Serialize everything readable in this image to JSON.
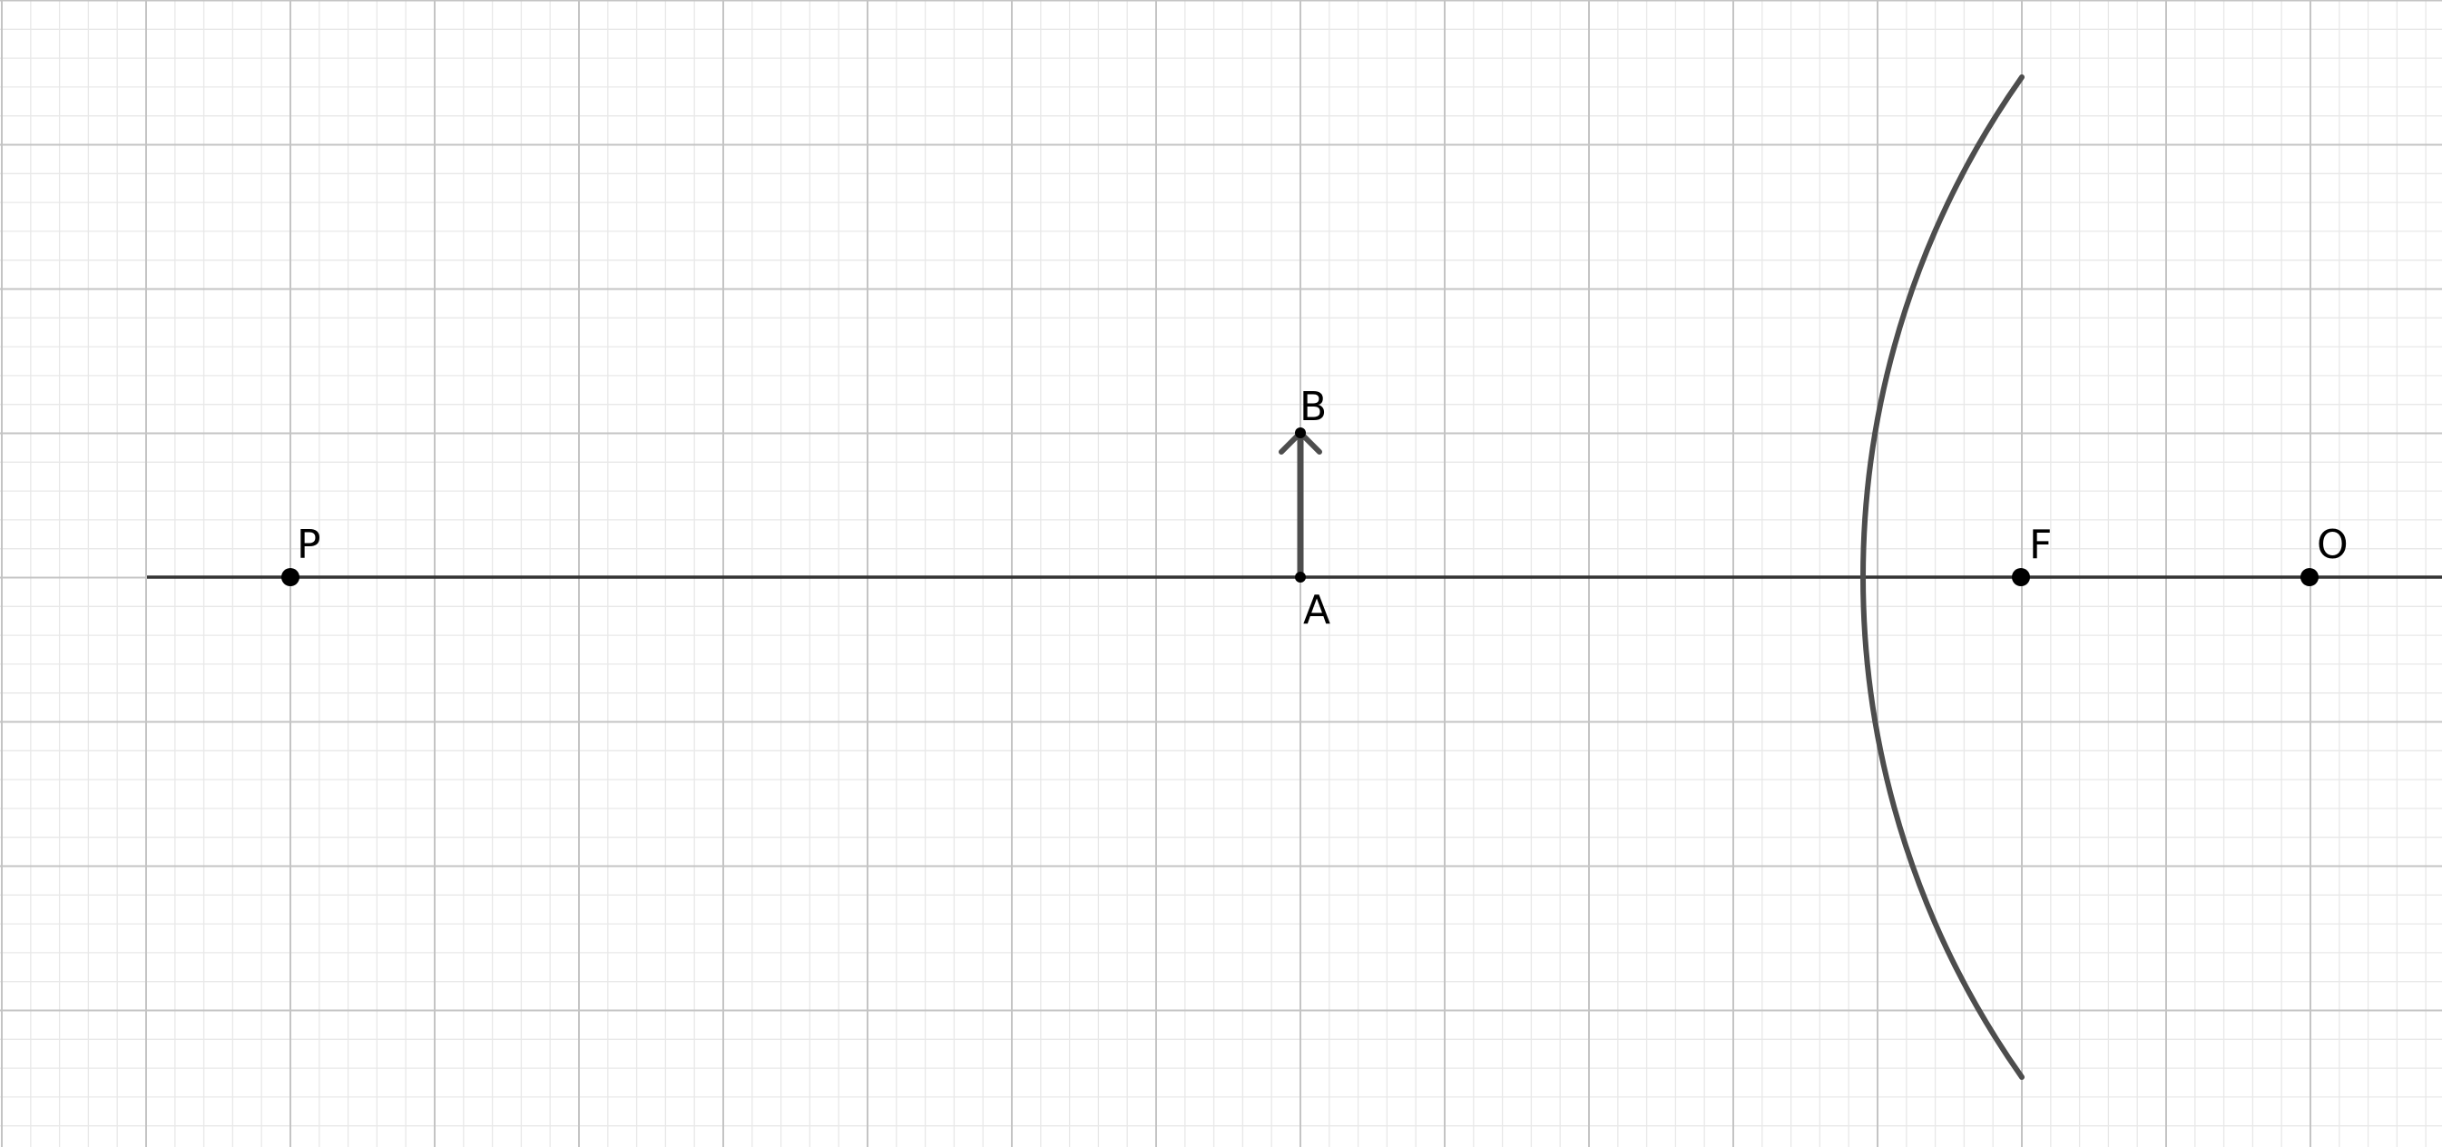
{
  "diagram": {
    "points": {
      "P": {
        "label": "P"
      },
      "A": {
        "label": "A"
      },
      "B": {
        "label": "B"
      },
      "F": {
        "label": "F"
      },
      "O": {
        "label": "O"
      }
    }
  }
}
